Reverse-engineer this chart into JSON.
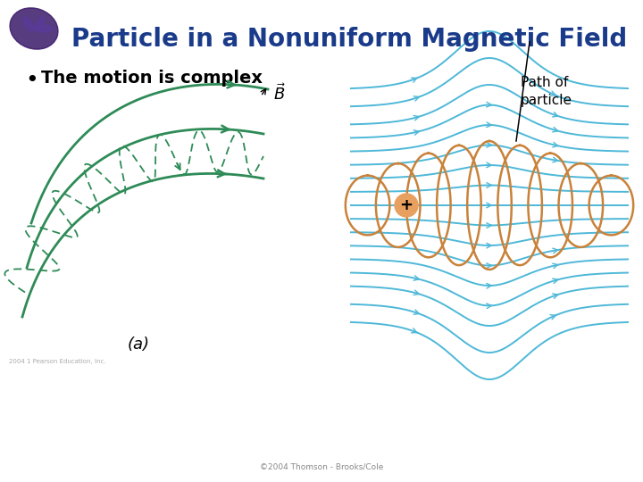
{
  "title": "Particle in a Nonuniform Magnetic Field",
  "title_color": "#1a3a8a",
  "title_fontsize": 20,
  "bullet_text": "The motion is complex",
  "bullet_fontsize": 14,
  "bg_color": "#ffffff",
  "teal": "#2e8b57",
  "cyan": "#4eb8d8",
  "orange": "#c8823a",
  "copyright": "©2004 Thomson - Brooks/Cole",
  "path_label": "Path of\nparticle",
  "a_label": "(a)"
}
